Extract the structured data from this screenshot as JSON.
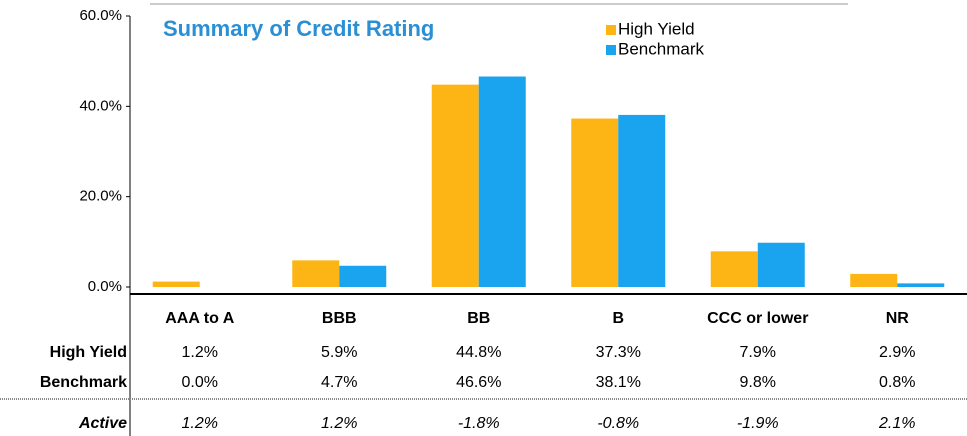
{
  "chart_data": {
    "type": "bar",
    "title": "Summary of Credit Rating",
    "categories": [
      "AAA to A",
      "BBB",
      "BB",
      "B",
      "CCC or lower",
      "NR"
    ],
    "series": [
      {
        "name": "High Yield",
        "color": "#FDB515",
        "values": [
          1.2,
          5.9,
          44.8,
          37.3,
          7.9,
          2.9
        ],
        "value_labels": [
          "1.2%",
          "5.9%",
          "44.8%",
          "37.3%",
          "7.9%",
          "2.9%"
        ]
      },
      {
        "name": "Benchmark",
        "color": "#1AA3EE",
        "values": [
          0.0,
          4.7,
          46.6,
          38.1,
          9.8,
          0.8
        ],
        "value_labels": [
          "0.0%",
          "4.7%",
          "46.6%",
          "38.1%",
          "9.8%",
          "0.8%"
        ]
      }
    ],
    "active": {
      "name": "Active",
      "labels": [
        "1.2%",
        "1.2%",
        "-1.8%",
        "-0.8%",
        "-1.9%",
        "2.1%"
      ]
    },
    "ylim": [
      0,
      60
    ],
    "yticks": [
      {
        "value": 0,
        "label": "0.0%"
      },
      {
        "value": 20,
        "label": "20.0%"
      },
      {
        "value": 40,
        "label": "40.0%"
      },
      {
        "value": 60,
        "label": "60.0%"
      }
    ],
    "grid": false,
    "legend": "top-right"
  }
}
